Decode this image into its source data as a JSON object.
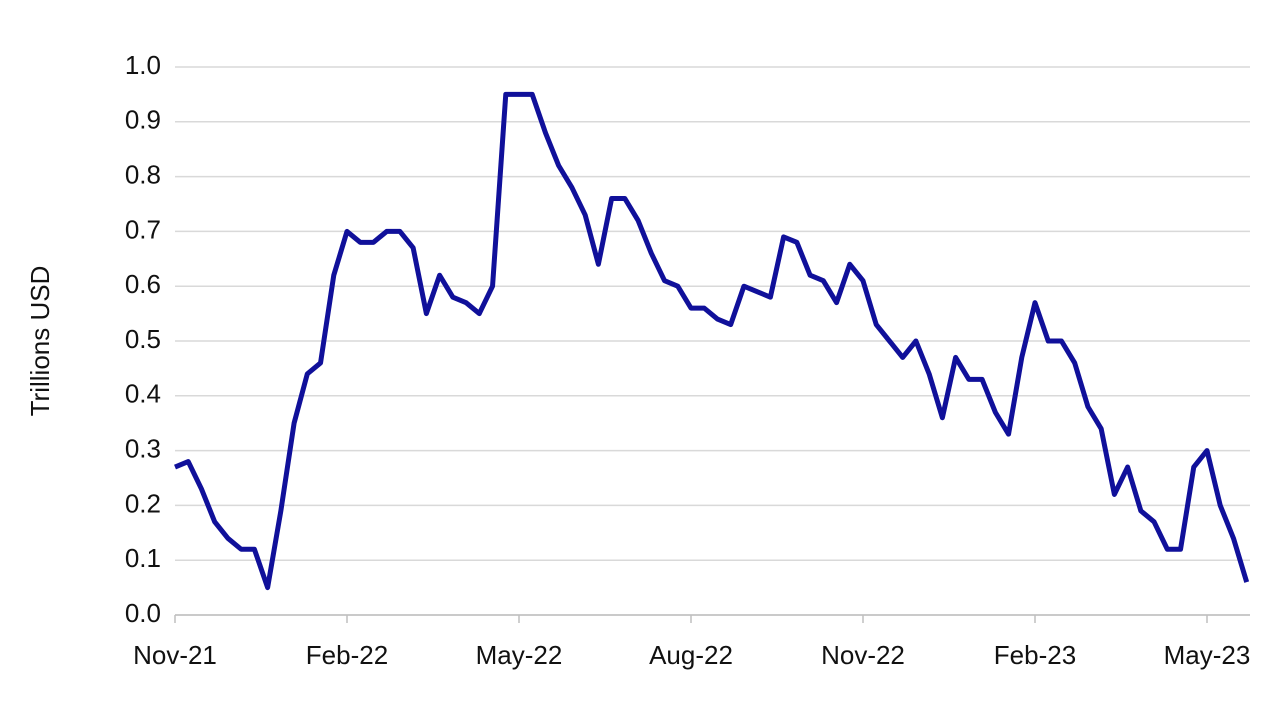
{
  "chart_data": {
    "type": "line",
    "y_label": "Trillions USD",
    "categories": [
      "Nov-21",
      null,
      null,
      null,
      null,
      null,
      null,
      null,
      null,
      null,
      null,
      null,
      null,
      "Feb-22",
      null,
      null,
      null,
      null,
      null,
      null,
      null,
      null,
      null,
      null,
      null,
      null,
      "May-22",
      null,
      null,
      null,
      null,
      null,
      null,
      null,
      null,
      null,
      null,
      null,
      null,
      "Aug-22",
      null,
      null,
      null,
      null,
      null,
      null,
      null,
      null,
      null,
      null,
      null,
      null,
      "Nov-22",
      null,
      null,
      null,
      null,
      null,
      null,
      null,
      null,
      null,
      null,
      null,
      null,
      "Feb-23",
      null,
      null,
      null,
      null,
      null,
      null,
      null,
      null,
      null,
      null,
      null,
      null,
      "May-23",
      null,
      null,
      null
    ],
    "series": [
      {
        "color": "#10109a",
        "values": [
          0.27,
          0.28,
          0.23,
          0.17,
          0.14,
          0.12,
          0.12,
          0.05,
          0.19,
          0.35,
          0.44,
          0.46,
          0.62,
          0.7,
          0.68,
          0.68,
          0.7,
          0.7,
          0.67,
          0.55,
          0.62,
          0.58,
          0.57,
          0.55,
          0.6,
          0.95,
          0.95,
          0.95,
          0.88,
          0.82,
          0.78,
          0.73,
          0.64,
          0.76,
          0.76,
          0.72,
          0.66,
          0.61,
          0.6,
          0.56,
          0.56,
          0.54,
          0.53,
          0.6,
          0.59,
          0.58,
          0.69,
          0.68,
          0.62,
          0.61,
          0.57,
          0.64,
          0.61,
          0.53,
          0.5,
          0.47,
          0.5,
          0.44,
          0.36,
          0.47,
          0.43,
          0.43,
          0.37,
          0.33,
          0.47,
          0.57,
          0.5,
          0.5,
          0.46,
          0.38,
          0.34,
          0.22,
          0.27,
          0.19,
          0.17,
          0.12,
          0.12,
          0.27,
          0.3,
          0.2,
          0.14,
          0.06
        ]
      }
    ],
    "ylim": [
      0,
      1
    ],
    "yticks": [
      {
        "value": 0,
        "label": "0.0"
      },
      0.1,
      0.2,
      0.3,
      0.4,
      0.5,
      0.6,
      0.7,
      0.8,
      0.9,
      {
        "value": 1,
        "label": "1.0"
      }
    ],
    "grid": true
  }
}
